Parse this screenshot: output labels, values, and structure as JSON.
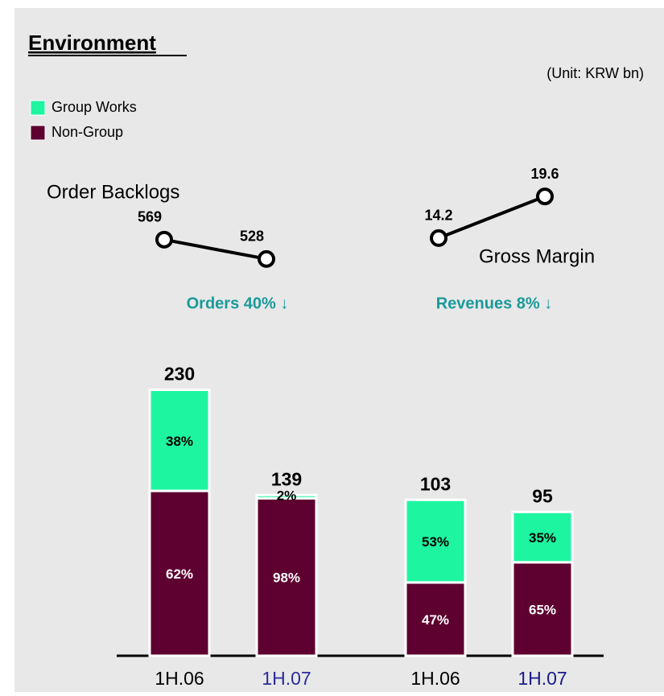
{
  "title": "Environment",
  "unit": "(Unit: KRW bn)",
  "chart_data": [
    {
      "type": "bar",
      "categories": [
        "1H.06",
        "1H.07"
      ],
      "category_colors": [
        "#000000",
        "#2b2b9a"
      ],
      "totals": [
        230,
        139
      ],
      "ylim": [
        0,
        254
      ],
      "series": [
        {
          "name": "Group Works",
          "color": "#1ef5a0",
          "values": [
            38,
            2
          ],
          "value_labels": [
            "38%",
            "2%"
          ],
          "label_color": "#000000"
        },
        {
          "name": "Non-Group",
          "color": "#5e0030",
          "values": [
            62,
            98
          ],
          "value_labels": [
            "62%",
            "98%"
          ],
          "label_color": "#ffffff"
        }
      ],
      "annotation": "Orders 40% ↓",
      "line": {
        "type": "line",
        "title": "Order Backlogs",
        "values": [
          569,
          528
        ],
        "ylim": [
          497,
          736
        ]
      }
    },
    {
      "type": "bar",
      "categories": [
        "1H.06",
        "1H.07"
      ],
      "category_colors": [
        "#000000",
        "#1a1a8a"
      ],
      "totals": [
        103,
        95
      ],
      "ylim": [
        0,
        194
      ],
      "series": [
        {
          "name": "Group Works",
          "color": "#1ef5a0",
          "values": [
            53,
            35
          ],
          "value_labels": [
            "53%",
            "35%"
          ],
          "label_color": "#000000"
        },
        {
          "name": "Non-Group",
          "color": "#5e0030",
          "values": [
            47,
            65
          ],
          "value_labels": [
            "47%",
            "65%"
          ],
          "label_color": "#ffffff"
        }
      ],
      "annotation": "Revenues 8% ↓",
      "line": {
        "type": "line",
        "title": "Gross Margin",
        "values": [
          14.2,
          19.6
        ],
        "ylim": [
          9.6,
          24.2
        ]
      }
    }
  ]
}
